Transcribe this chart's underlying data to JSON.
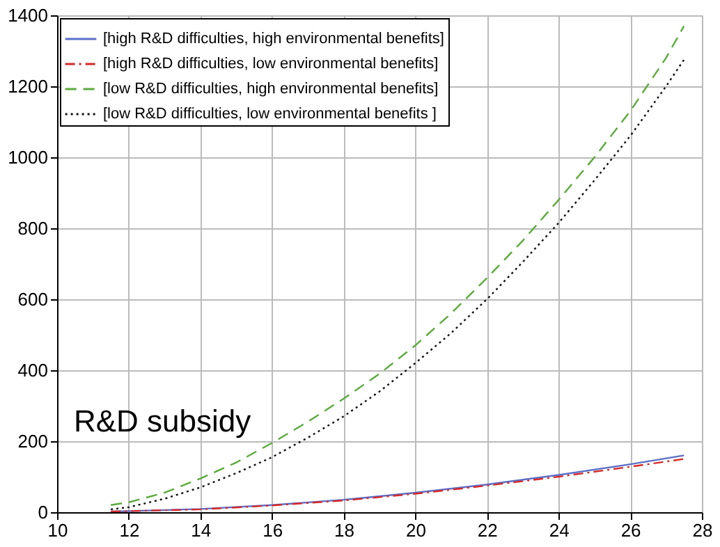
{
  "chart_data": {
    "type": "line",
    "xlim": [
      10,
      28
    ],
    "ylim": [
      0,
      1400
    ],
    "xticks": [
      10,
      12,
      14,
      16,
      18,
      20,
      22,
      24,
      26,
      28
    ],
    "yticks": [
      0,
      200,
      400,
      600,
      800,
      1000,
      1200,
      1400
    ],
    "grid": true,
    "legend": "top left",
    "marker": "none",
    "annotations": [
      "R&D subsidy"
    ],
    "series": [
      {
        "name": "[high R&D difficulties, high environmental benefits]",
        "color": "#5b6fc7",
        "line_style": "solid",
        "x": [
          11.5,
          12,
          14,
          16,
          18,
          20,
          22,
          24,
          26,
          27.5
        ],
        "values": [
          2,
          3,
          9,
          20,
          35,
          55,
          78,
          105,
          135,
          160
        ]
      },
      {
        "name": "[high R&D difficulties, low environmental benefits]",
        "color": "#d42a2a",
        "line_style": "dashdot",
        "x": [
          11.5,
          12,
          14,
          16,
          18,
          20,
          22,
          24,
          26,
          27.5
        ],
        "values": [
          2,
          3,
          8,
          19,
          33,
          52,
          75,
          100,
          128,
          150
        ]
      },
      {
        "name": "[low R&D difficulties, high environmental benefits]",
        "color": "#5aaa3c",
        "line_style": "dashed",
        "x": [
          11.5,
          12,
          13,
          14,
          15,
          16,
          17,
          18,
          19,
          20,
          21,
          22,
          23,
          24,
          25,
          26,
          27,
          27.5
        ],
        "values": [
          20,
          28,
          55,
          95,
          140,
          195,
          255,
          320,
          390,
          470,
          560,
          660,
          765,
          880,
          1000,
          1130,
          1280,
          1370
        ]
      },
      {
        "name": "[low R&D difficulties, low environmental benefits ]",
        "color": "#111111",
        "line_style": "dotted",
        "x": [
          11.5,
          12,
          13,
          14,
          15,
          16,
          17,
          18,
          19,
          20,
          21,
          22,
          23,
          24,
          25,
          26,
          27,
          27.5
        ],
        "values": [
          8,
          14,
          38,
          70,
          110,
          155,
          210,
          270,
          340,
          420,
          505,
          600,
          705,
          815,
          935,
          1060,
          1200,
          1275
        ]
      }
    ]
  }
}
